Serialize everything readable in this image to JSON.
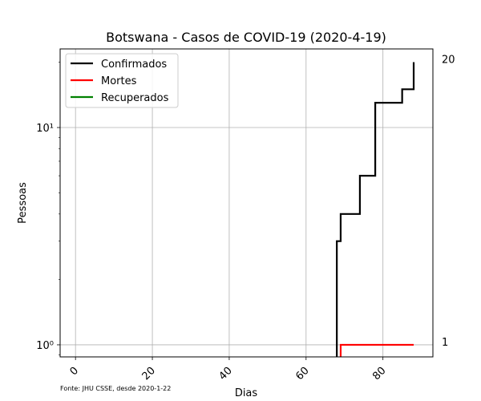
{
  "chart_data": {
    "type": "line",
    "title": "Botswana - Casos de COVID-19 (2020-4-19)",
    "xlabel": "Dias",
    "ylabel": "Pessoas",
    "yscale": "log",
    "xlim": [
      -4,
      93
    ],
    "ylim": [
      0.88,
      23
    ],
    "x_ticks": [
      0,
      20,
      40,
      60,
      80
    ],
    "y_ticks": [
      {
        "value": 1,
        "label": "10⁰"
      },
      {
        "value": 10,
        "label": "10¹"
      }
    ],
    "grid": true,
    "legend_position": "top-left",
    "source_note": "Fonte: JHU CSSE, desde 2020-1-22",
    "series": [
      {
        "name": "Confirmados",
        "color": "#000000",
        "step": true,
        "points": [
          [
            68,
            3
          ],
          [
            69,
            4
          ],
          [
            73,
            4
          ],
          [
            74,
            6
          ],
          [
            77,
            6
          ],
          [
            78,
            13
          ],
          [
            84,
            13
          ],
          [
            85,
            15
          ],
          [
            87,
            15
          ],
          [
            88,
            20
          ]
        ]
      },
      {
        "name": "Mortes",
        "color": "#ff0000",
        "step": true,
        "points": [
          [
            69,
            1
          ],
          [
            88,
            1
          ]
        ]
      },
      {
        "name": "Recuperados",
        "color": "#008000",
        "step": true,
        "points": []
      }
    ],
    "end_labels": [
      {
        "value": 20,
        "text": "20"
      },
      {
        "value": 1,
        "text": "1"
      }
    ]
  }
}
